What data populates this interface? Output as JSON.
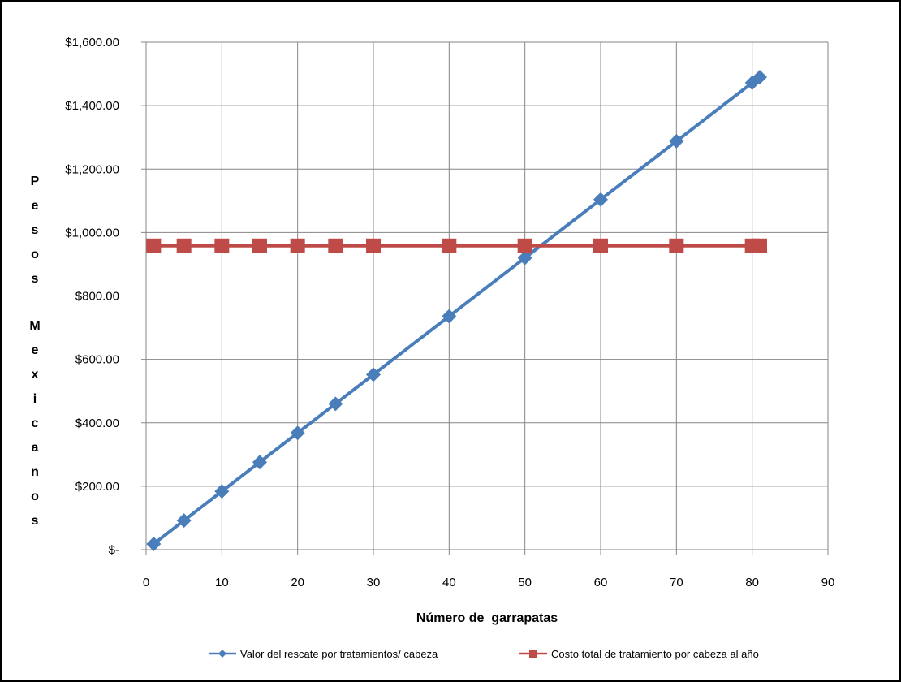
{
  "chart_data": {
    "type": "line",
    "title": "",
    "xlabel": "Número de  garrapatas",
    "ylabel": "Pesos Mexicanos",
    "xlim": [
      0,
      90
    ],
    "ylim": [
      0,
      1600
    ],
    "x_ticks": [
      0,
      10,
      20,
      30,
      40,
      50,
      60,
      70,
      80,
      90
    ],
    "x_tick_labels": [
      "0",
      "10",
      "20",
      "30",
      "40",
      "50",
      "60",
      "70",
      "80",
      "90"
    ],
    "y_ticks": [
      0,
      200,
      400,
      600,
      800,
      1000,
      1200,
      1400,
      1600
    ],
    "y_tick_labels": [
      "$-",
      "$200.00",
      "$400.00",
      "$600.00",
      "$800.00",
      "$1,000.00",
      "$1,200.00",
      "$1,400.00",
      "$1,600.00"
    ],
    "grid": true,
    "legend_position": "bottom",
    "series": [
      {
        "name": "Valor del rescate por tratamientos/ cabeza",
        "color": "#4a7ebb",
        "marker": "diamond",
        "x": [
          1,
          5,
          10,
          15,
          20,
          25,
          30,
          40,
          50,
          60,
          70,
          80,
          81
        ],
        "y": [
          18,
          92,
          184,
          276,
          368,
          460,
          552,
          736,
          920,
          1104,
          1288,
          1472,
          1490
        ]
      },
      {
        "name": "Costo total de tratamiento por cabeza al año",
        "color": "#be4b48",
        "marker": "square",
        "x": [
          1,
          5,
          10,
          15,
          20,
          25,
          30,
          40,
          50,
          60,
          70,
          80,
          81
        ],
        "y": [
          958,
          958,
          958,
          958,
          958,
          958,
          958,
          958,
          958,
          958,
          958,
          958,
          958
        ]
      }
    ]
  }
}
